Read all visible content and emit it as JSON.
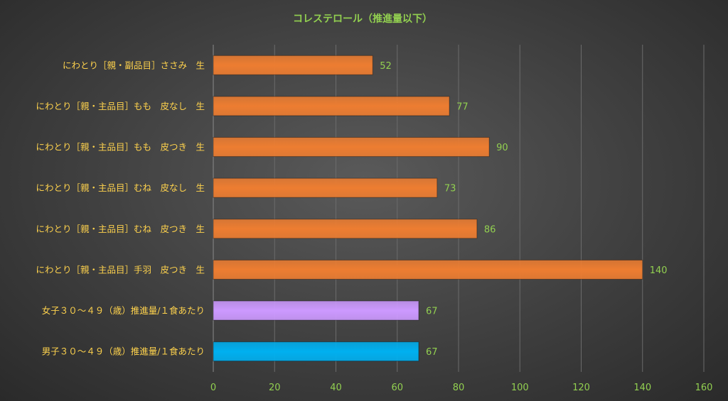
{
  "chart_data": {
    "type": "bar",
    "orientation": "horizontal",
    "title": "コレステロール（推進量以下）",
    "categories": [
      "にわとり［親・副品目］ささみ　生",
      "にわとり［親・主品目］もも　皮なし　生",
      "にわとり［親・主品目］もも　皮つき　生",
      "にわとり［親・主品目］むね　皮なし　生",
      "にわとり［親・主品目］むね　皮つき　生",
      "にわとり［親・主品目］手羽　皮つき　生",
      "女子３０～４９（歳）推進量/１食あたり",
      "男子３０～４９（歳）推進量/１食あたり"
    ],
    "values": [
      52,
      77,
      90,
      73,
      86,
      140,
      67,
      67
    ],
    "bar_colors": [
      "#ed7d31",
      "#ed7d31",
      "#ed7d31",
      "#ed7d31",
      "#ed7d31",
      "#ed7d31",
      "#cc99ff",
      "#00b0f0"
    ],
    "xlim": [
      0,
      160
    ],
    "xticks": [
      0,
      20,
      40,
      60,
      80,
      100,
      120,
      140,
      160
    ],
    "grid": true,
    "data_labels": true,
    "colors": {
      "title": "#92d050",
      "category_labels": "#ffd34d",
      "tick_labels": "#92d050",
      "data_labels": "#92d050"
    }
  }
}
